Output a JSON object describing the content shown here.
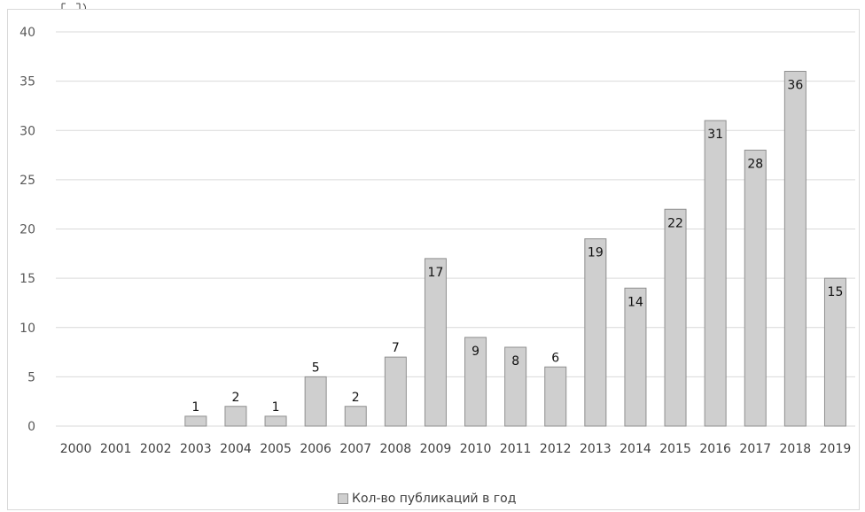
{
  "chart_data": {
    "type": "bar",
    "categories": [
      "2000",
      "2001",
      "2002",
      "2003",
      "2004",
      "2005",
      "2006",
      "2007",
      "2008",
      "2009",
      "2010",
      "2011",
      "2012",
      "2013",
      "2014",
      "2015",
      "2016",
      "2017",
      "2018",
      "2019"
    ],
    "series": [
      {
        "name": "Кол-во публикаций в год",
        "values": [
          0,
          0,
          0,
          1,
          2,
          1,
          5,
          2,
          7,
          17,
          9,
          8,
          6,
          19,
          14,
          22,
          31,
          28,
          36,
          15
        ]
      }
    ],
    "data_labels": [
      "",
      "",
      "",
      "1",
      "2",
      "1",
      "5",
      "2",
      "7",
      "17",
      "9",
      "8",
      "6",
      "19",
      "14",
      "22",
      "31",
      "28",
      "36",
      "15"
    ],
    "y_ticks": [
      "0",
      "5",
      "10",
      "15",
      "20",
      "25",
      "30",
      "35",
      "40"
    ],
    "ylim": [
      0,
      40
    ],
    "grid": true,
    "legend_position": "bottom",
    "colors": {
      "bar_fill": "#cfcfcf",
      "bar_stroke": "#8f8f8f",
      "grid": "#d9d9d9"
    }
  },
  "legend": {
    "label": "Кол-во публикаций в год"
  }
}
